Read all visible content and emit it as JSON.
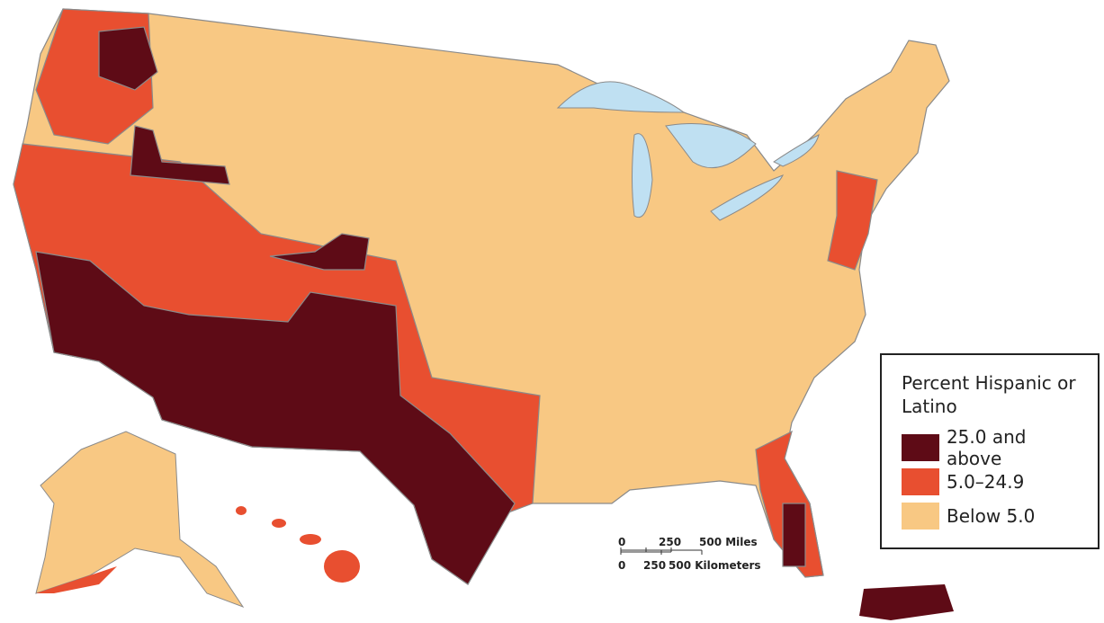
{
  "legend": {
    "title": "Percent Hispanic or Latino",
    "items": [
      {
        "label": "25.0 and above",
        "color": "#5e0b16"
      },
      {
        "label": "5.0–24.9",
        "color": "#e84f30"
      },
      {
        "label": "Below 5.0",
        "color": "#f8c883"
      }
    ]
  },
  "scale_bar": {
    "miles": {
      "ticks": [
        0,
        250,
        {
          "value": 500,
          "label": "500 Miles"
        }
      ]
    },
    "kilometers": {
      "ticks": [
        0,
        250,
        {
          "value": 500,
          "label": "500 Kilometers"
        }
      ]
    }
  }
}
